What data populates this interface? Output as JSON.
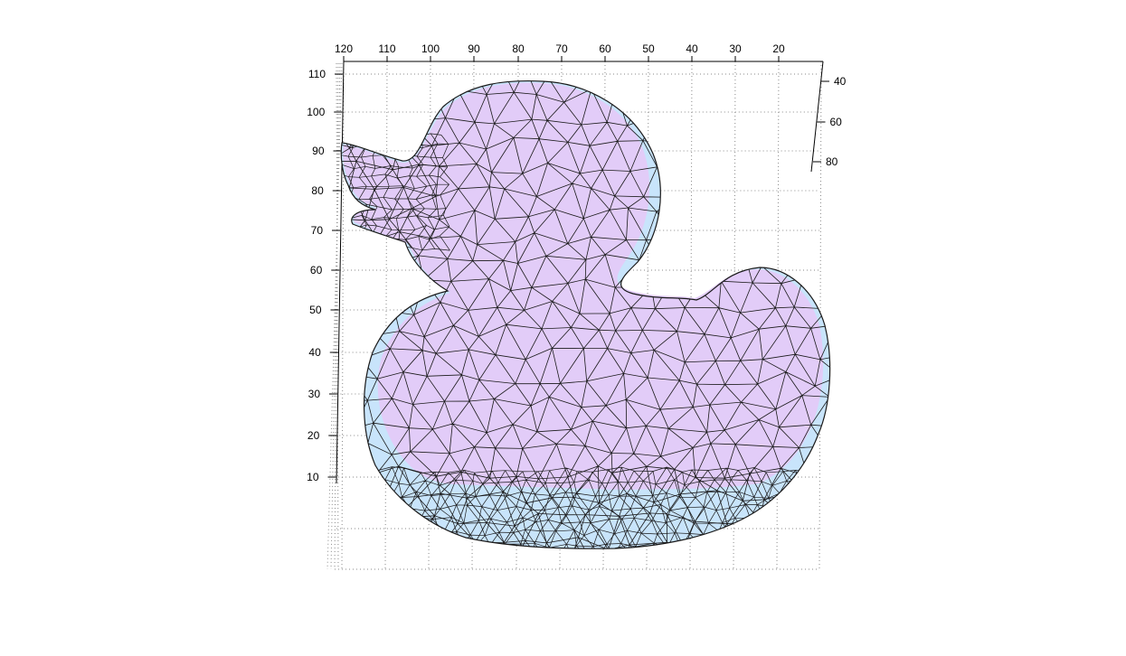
{
  "chart_data": {
    "type": "surface-mesh",
    "title": "",
    "colors": {
      "top_face": "#e2ccf8",
      "side_face": "#c8e4fb",
      "edge": "#1a1a1a",
      "grid": "#8a8a8a",
      "background": "#ffffff"
    },
    "grid": true,
    "axes": {
      "x": {
        "ticks": [
          120,
          110,
          100,
          90,
          80,
          70,
          60,
          50,
          40,
          30,
          20
        ],
        "range": [
          15,
          120
        ],
        "direction": "reversed"
      },
      "y": {
        "ticks": [
          40,
          60,
          80
        ],
        "range": [
          30,
          85
        ]
      },
      "z": {
        "ticks": [
          10,
          20,
          30,
          40,
          50,
          60,
          70,
          80,
          90,
          100,
          110
        ],
        "range": [
          0,
          115
        ]
      }
    },
    "x_tick_labels": [
      "120",
      "110",
      "100",
      "90",
      "80",
      "70",
      "60",
      "50",
      "40",
      "30",
      "20"
    ],
    "y_tick_labels": [
      "40",
      "60",
      "80"
    ],
    "z_tick_labels": [
      "110",
      "100",
      "90",
      "80",
      "70",
      "60",
      "50",
      "40",
      "30",
      "20",
      "10"
    ],
    "object": "triangulated rubber duck mesh"
  }
}
